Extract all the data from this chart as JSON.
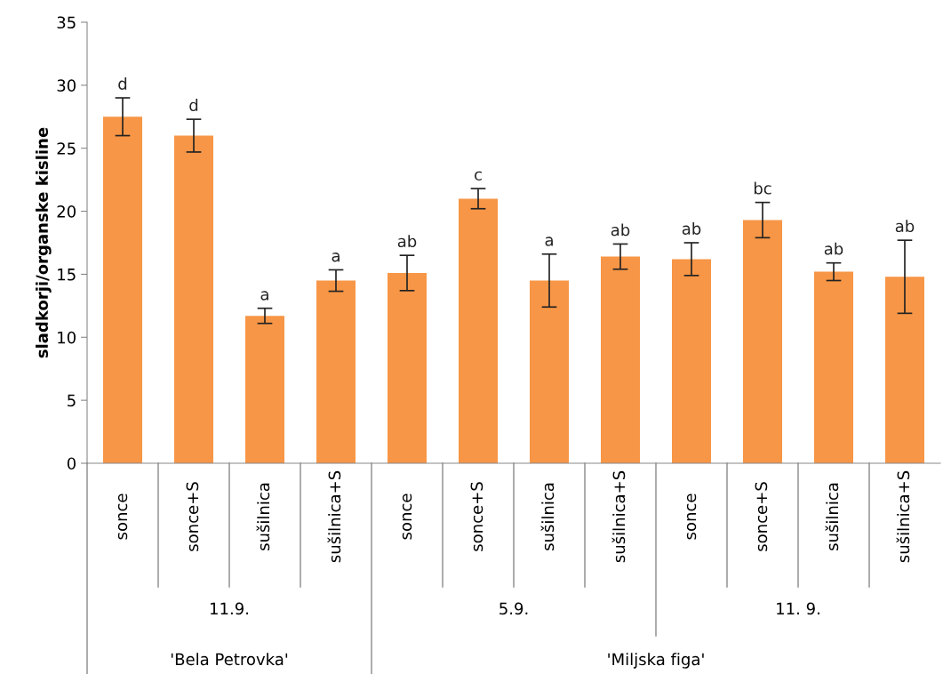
{
  "chart_data": {
    "type": "bar",
    "ylabel": "sladkorji/organske kisline",
    "categories": [
      "sonce",
      "sonce+S",
      "sušilnica",
      "sušilnica+S",
      "sonce",
      "sonce+S",
      "sušilnica",
      "sušilnica+S",
      "sonce",
      "sonce+S",
      "sušilnica",
      "sušilnica+S"
    ],
    "values": [
      27.5,
      26.0,
      11.7,
      14.5,
      15.1,
      21.0,
      14.5,
      16.4,
      16.2,
      19.3,
      15.2,
      14.8
    ],
    "errors": [
      1.5,
      1.3,
      0.6,
      0.85,
      1.4,
      0.8,
      2.1,
      1.0,
      1.3,
      1.4,
      0.7,
      2.9
    ],
    "value_labels": [
      "d",
      "d",
      "a",
      "a",
      "ab",
      "c",
      "a",
      "ab",
      "ab",
      "bc",
      "ab",
      "ab"
    ],
    "color": "#f79646",
    "ylim": [
      0,
      35
    ],
    "yticks": [
      0,
      5,
      10,
      15,
      20,
      25,
      30,
      35
    ],
    "grid": false,
    "legend": false,
    "annotations": [
      "11.9.",
      "5.9.",
      "11. 9.",
      "'Bela Petrovka'",
      "'Miljska figa'"
    ]
  }
}
